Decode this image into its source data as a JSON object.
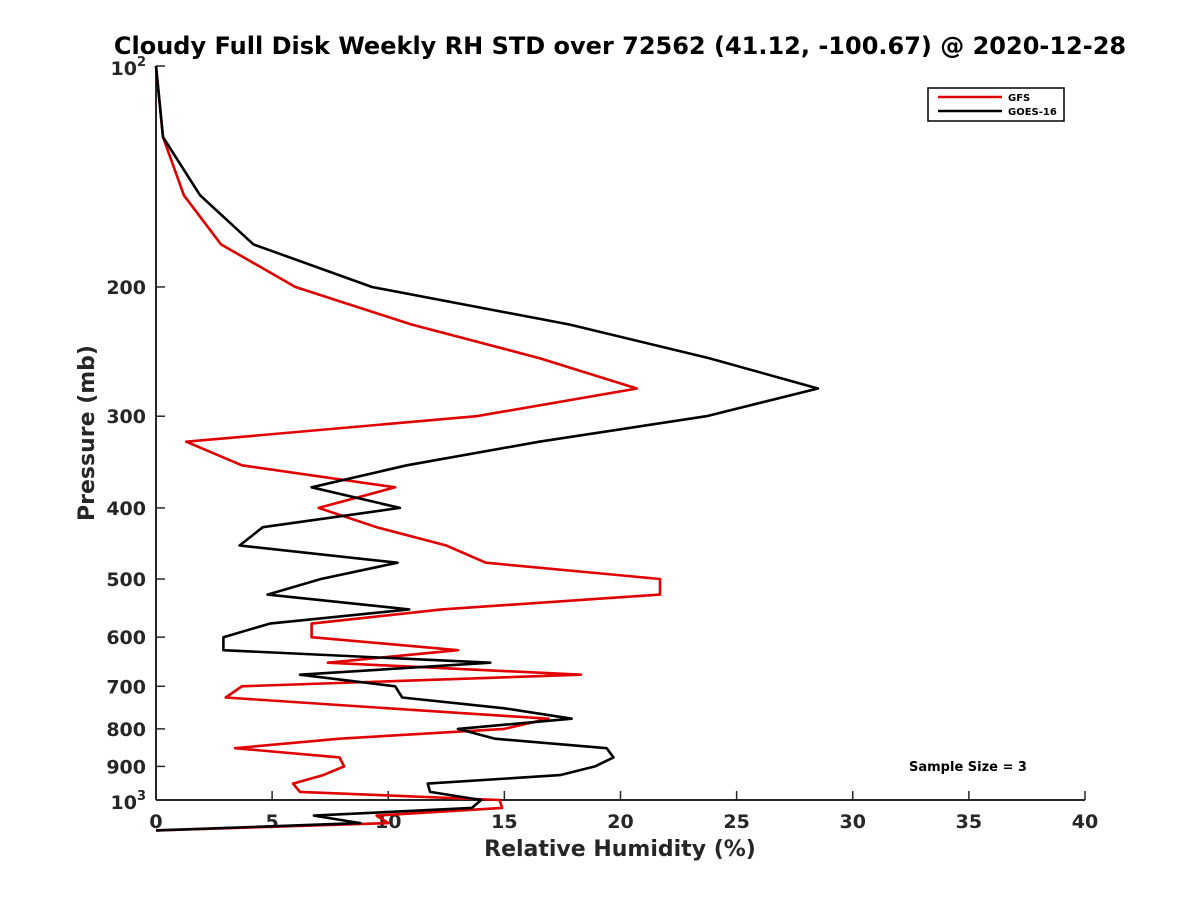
{
  "chart_data": {
    "type": "line",
    "title": "Cloudy Full Disk Weekly RH STD over 72562 (41.12, -100.67) @ 2020-12-28",
    "xlabel": "Relative Humidity (%)",
    "ylabel": "Pressure (mb)",
    "xlim": [
      0,
      40
    ],
    "ylim": [
      100,
      1000
    ],
    "y_scale": "log",
    "y_reversed": true,
    "grid": false,
    "legend_position": "top-right",
    "x_ticks": [
      0,
      5,
      10,
      15,
      20,
      25,
      30,
      35,
      40
    ],
    "x_tick_labels": [
      "0",
      "5",
      "10",
      "15",
      "20",
      "25",
      "30",
      "35",
      "40"
    ],
    "y_ticks": [
      200,
      300,
      400,
      500,
      600,
      700,
      800,
      900
    ],
    "y_tick_labels": [
      "200",
      "300",
      "400",
      "500",
      "600",
      "700",
      "800",
      "900"
    ],
    "y_end_labels": {
      "top_base": "10",
      "top_exp": "2",
      "bottom_base": "10",
      "bottom_exp": "3"
    },
    "annotation": "Sample Size = 3",
    "series": [
      {
        "name": "GFS",
        "color": "#e00000",
        "points": [
          [
            0.0,
            100
          ],
          [
            0.3,
            125
          ],
          [
            1.2,
            150
          ],
          [
            2.8,
            175
          ],
          [
            6.0,
            200
          ],
          [
            11.0,
            225
          ],
          [
            16.5,
            250
          ],
          [
            20.7,
            275
          ],
          [
            13.8,
            300
          ],
          [
            1.3,
            325
          ],
          [
            3.7,
            350
          ],
          [
            10.3,
            375
          ],
          [
            7.0,
            400
          ],
          [
            9.5,
            425
          ],
          [
            12.5,
            450
          ],
          [
            14.2,
            475
          ],
          [
            21.7,
            500
          ],
          [
            21.7,
            525
          ],
          [
            12.3,
            550
          ],
          [
            6.7,
            575
          ],
          [
            6.7,
            600
          ],
          [
            13.0,
            625
          ],
          [
            7.4,
            650
          ],
          [
            18.3,
            675
          ],
          [
            3.7,
            700
          ],
          [
            3.0,
            725
          ],
          [
            10.0,
            750
          ],
          [
            16.9,
            775
          ],
          [
            15.0,
            800
          ],
          [
            7.9,
            825
          ],
          [
            3.4,
            850
          ],
          [
            7.9,
            875
          ],
          [
            8.1,
            900
          ],
          [
            7.2,
            925
          ],
          [
            5.9,
            950
          ],
          [
            6.2,
            975
          ],
          [
            14.8,
            1000
          ],
          [
            14.9,
            1025
          ],
          [
            9.5,
            1050
          ],
          [
            10.0,
            1075
          ],
          [
            0.0,
            1100
          ]
        ]
      },
      {
        "name": "GOES-16",
        "color": "#000000",
        "points": [
          [
            0.0,
            100
          ],
          [
            0.3,
            125
          ],
          [
            1.9,
            150
          ],
          [
            4.2,
            175
          ],
          [
            9.3,
            200
          ],
          [
            17.8,
            225
          ],
          [
            23.8,
            250
          ],
          [
            28.5,
            275
          ],
          [
            23.7,
            300
          ],
          [
            16.5,
            325
          ],
          [
            10.8,
            350
          ],
          [
            6.7,
            375
          ],
          [
            10.5,
            400
          ],
          [
            4.6,
            425
          ],
          [
            3.6,
            450
          ],
          [
            10.4,
            475
          ],
          [
            7.1,
            500
          ],
          [
            4.8,
            525
          ],
          [
            10.9,
            550
          ],
          [
            4.9,
            575
          ],
          [
            2.9,
            600
          ],
          [
            2.9,
            625
          ],
          [
            14.4,
            650
          ],
          [
            6.2,
            675
          ],
          [
            10.3,
            700
          ],
          [
            10.6,
            725
          ],
          [
            15.0,
            750
          ],
          [
            17.9,
            775
          ],
          [
            13.0,
            800
          ],
          [
            14.6,
            825
          ],
          [
            19.4,
            850
          ],
          [
            19.7,
            875
          ],
          [
            18.9,
            900
          ],
          [
            17.4,
            925
          ],
          [
            11.7,
            950
          ],
          [
            11.8,
            975
          ],
          [
            14.0,
            1000
          ],
          [
            13.6,
            1025
          ],
          [
            6.8,
            1050
          ],
          [
            8.8,
            1075
          ],
          [
            0.0,
            1100
          ]
        ]
      }
    ]
  }
}
